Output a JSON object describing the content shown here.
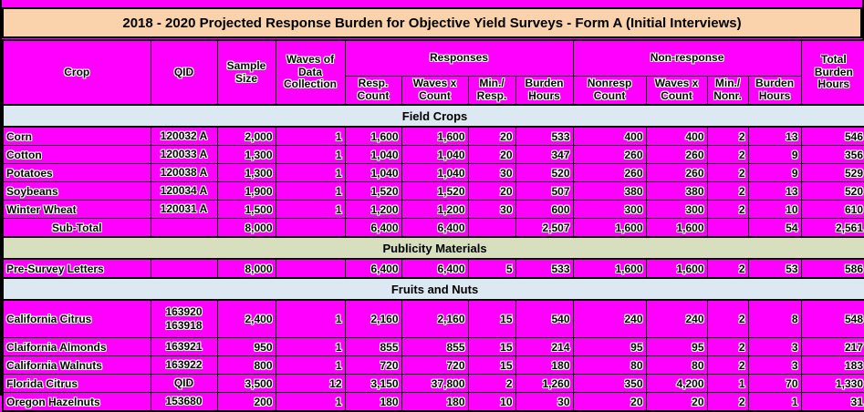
{
  "palette": {
    "page_background": "#ff00ff",
    "title_background": "#fad3ac",
    "section_blue": "#dce9f2",
    "section_green": "#d8dfbe",
    "border": "#000000",
    "text": "#000000"
  },
  "title": "2018 - 2020 Projected Response Burden for Objective Yield Surveys - Form A (Initial Interviews)",
  "table": {
    "header1": {
      "crop": "Crop",
      "qid": "QID",
      "sample": "Sample Size",
      "waves": "Waves of Data Collection",
      "responses": "Responses",
      "nonresponse": "Non-response",
      "total": "Total Burden Hours"
    },
    "header2": {
      "resp_count": "Resp. Count",
      "waves_x_count": "Waves x Count",
      "min_resp": "Min./ Resp.",
      "burden_hours": "Burden Hours",
      "nonresp_count": "Nonresp Count",
      "waves_x_count2": "Waves x Count",
      "min_nonr": "Min./ Nonr.",
      "burden_hours2": "Burden Hours"
    },
    "sections": [
      {
        "name": "Field Crops",
        "color": "#dce9f2",
        "rows": [
          {
            "type": "data",
            "cells": [
              "Corn",
              "120032 A",
              "2,000",
              "1",
              "1,600",
              "1,600",
              "20",
              "533",
              "400",
              "400",
              "2",
              "13",
              "546"
            ]
          },
          {
            "type": "data",
            "cells": [
              "Cotton",
              "120033 A",
              "1,300",
              "1",
              "1,040",
              "1,040",
              "20",
              "347",
              "260",
              "260",
              "2",
              "9",
              "356"
            ]
          },
          {
            "type": "data",
            "cells": [
              "Potatoes",
              "120038 A",
              "1,300",
              "1",
              "1,040",
              "1,040",
              "30",
              "520",
              "260",
              "260",
              "2",
              "9",
              "529"
            ]
          },
          {
            "type": "data",
            "cells": [
              "Soybeans",
              "120034 A",
              "1,900",
              "1",
              "1,520",
              "1,520",
              "20",
              "507",
              "380",
              "380",
              "2",
              "13",
              "520"
            ]
          },
          {
            "type": "data",
            "cells": [
              "Winter Wheat",
              "120031 A",
              "1,500",
              "1",
              "1,200",
              "1,200",
              "30",
              "600",
              "300",
              "300",
              "2",
              "10",
              "610"
            ]
          },
          {
            "type": "subtotal",
            "cells": [
              "Sub-Total",
              "",
              "8,000",
              "",
              "6,400",
              "6,400",
              "",
              "2,507",
              "1,600",
              "1,600",
              "",
              "54",
              "2,561"
            ]
          }
        ]
      },
      {
        "name": "Publicity Materials",
        "color": "#d8dfbe",
        "rows": [
          {
            "type": "data",
            "cells": [
              "Pre-Survey Letters",
              "",
              "8,000",
              "",
              "6,400",
              "6,400",
              "5",
              "533",
              "1,600",
              "1,600",
              "2",
              "53",
              "586"
            ]
          }
        ]
      },
      {
        "name": "Fruits and Nuts",
        "color": "#dce9f2",
        "rows": [
          {
            "type": "data",
            "tall": true,
            "cells": [
              "California Citrus",
              "163920\n163918",
              "2,400",
              "1",
              "2,160",
              "2,160",
              "15",
              "540",
              "240",
              "240",
              "2",
              "8",
              "548"
            ]
          },
          {
            "type": "data",
            "cells": [
              "Claifornia Almonds",
              "163921",
              "950",
              "1",
              "855",
              "855",
              "15",
              "214",
              "95",
              "95",
              "2",
              "3",
              "217"
            ]
          },
          {
            "type": "data",
            "cells": [
              "California Walnuts",
              "163922",
              "800",
              "1",
              "720",
              "720",
              "15",
              "180",
              "80",
              "80",
              "2",
              "3",
              "183"
            ]
          },
          {
            "type": "data",
            "cells": [
              "Florida Citrus",
              "QID",
              "3,500",
              "12",
              "3,150",
              "37,800",
              "2",
              "1,260",
              "350",
              "4,200",
              "1",
              "70",
              "1,330"
            ]
          },
          {
            "type": "data",
            "cells": [
              "Oregon Hazelnuts",
              "153680",
              "200",
              "1",
              "180",
              "180",
              "10",
              "30",
              "20",
              "20",
              "2",
              "1",
              "31"
            ]
          }
        ]
      }
    ]
  }
}
